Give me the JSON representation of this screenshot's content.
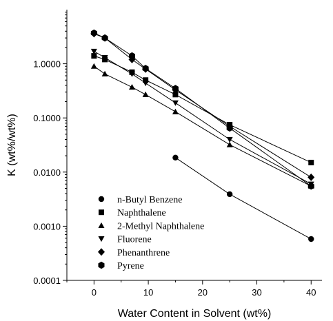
{
  "chart_data": {
    "type": "line",
    "xlabel": "Water Content in Solvent (wt%)",
    "ylabel": "K (wt%/wt%)",
    "xlim": [
      -5,
      42
    ],
    "ylim": [
      0.0001,
      10
    ],
    "yscale": "log",
    "x_ticks": [
      0,
      10,
      20,
      30,
      40
    ],
    "x_tick_labels": [
      "0",
      "10",
      "20",
      "30",
      "40"
    ],
    "y_ticks": [
      0.0001,
      0.001,
      0.01,
      0.1,
      1
    ],
    "y_tick_labels": [
      "0.0001",
      "0.0010",
      "0.0100",
      "0.1000",
      "1.0000"
    ],
    "grid": false,
    "legend_position": "bottom-left",
    "series": [
      {
        "name": "n-Butyl Benzene",
        "marker": "circle",
        "x": [
          15,
          25,
          40
        ],
        "y": [
          0.0185,
          0.0039,
          0.00058
        ]
      },
      {
        "name": "Naphthalene",
        "marker": "square",
        "x": [
          0,
          2,
          7,
          9.5,
          15,
          25,
          40
        ],
        "y": [
          1.4,
          1.2,
          0.7,
          0.5,
          0.27,
          0.075,
          0.015
        ]
      },
      {
        "name": "2-Methyl Naphthalene",
        "marker": "triangle-up",
        "x": [
          0,
          2,
          7,
          9.5,
          15,
          25,
          40
        ],
        "y": [
          0.9,
          0.65,
          0.37,
          0.27,
          0.13,
          0.032,
          0.0055
        ]
      },
      {
        "name": "Fluorene",
        "marker": "triangle-down",
        "x": [
          0,
          2,
          7,
          9.5,
          15,
          25,
          40
        ],
        "y": [
          1.7,
          1.3,
          0.65,
          0.44,
          0.19,
          0.04,
          0.006
        ]
      },
      {
        "name": "Phenanthrene",
        "marker": "diamond",
        "x": [
          0,
          2,
          7,
          9.5,
          15,
          25,
          40
        ],
        "y": [
          3.6,
          3.0,
          1.2,
          0.8,
          0.33,
          0.07,
          0.008
        ]
      },
      {
        "name": "Pyrene",
        "marker": "hexagon",
        "x": [
          0,
          2,
          7,
          9.5,
          15,
          25,
          40
        ],
        "y": [
          3.7,
          3.0,
          1.4,
          0.82,
          0.35,
          0.065,
          0.0055
        ]
      }
    ]
  }
}
